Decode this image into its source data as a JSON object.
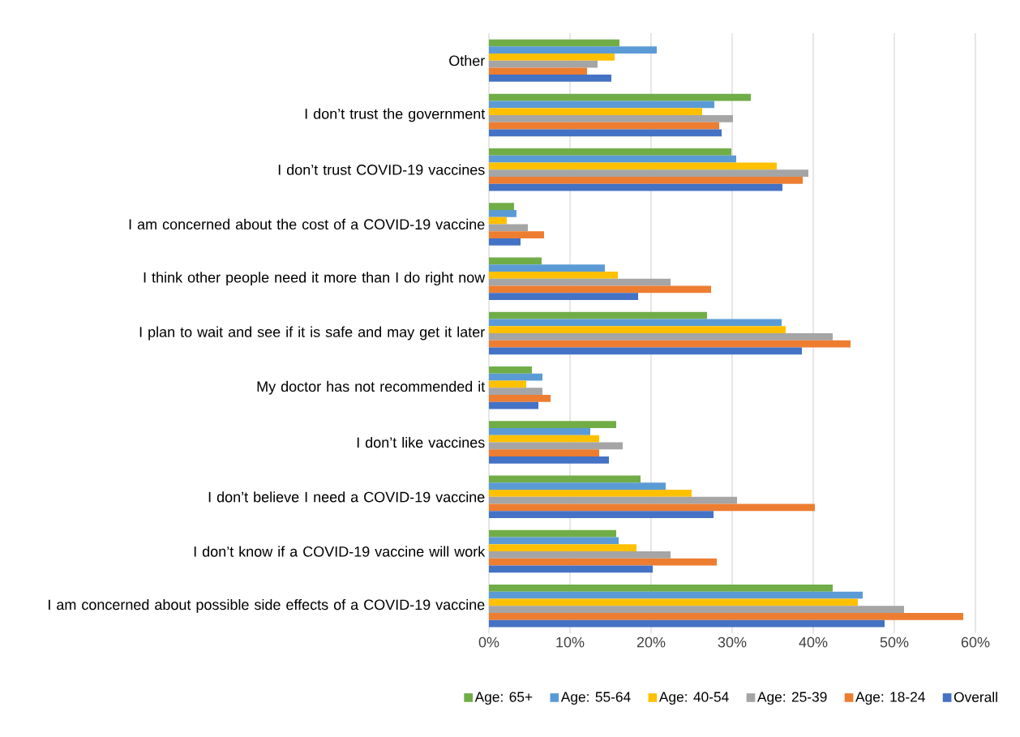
{
  "chart_data": {
    "type": "bar",
    "orientation": "horizontal",
    "categories": [
      "Other",
      "I don’t trust the government",
      "I don’t trust COVID-19 vaccines",
      "I am concerned about the cost of a COVID-19 vaccine",
      "I think other people need it more than I do right now",
      "I plan to wait and see if it is safe and may get it later",
      "My doctor has not recommended it",
      "I don’t like vaccines",
      "I don’t believe I need a COVID-19 vaccine",
      "I don’t know if a COVID-19 vaccine will work",
      "I am concerned about possible side effects of a COVID-19 vaccine"
    ],
    "series": [
      {
        "name": "Age: 65+",
        "color": "#70ad47",
        "values": [
          16.1,
          32.3,
          29.9,
          3.1,
          6.5,
          26.9,
          5.3,
          15.7,
          18.7,
          15.7,
          42.4
        ]
      },
      {
        "name": "Age: 55-64",
        "color": "#5b9bd5",
        "values": [
          20.7,
          27.8,
          30.5,
          3.4,
          14.3,
          36.1,
          6.6,
          12.5,
          21.8,
          16.0,
          46.1
        ]
      },
      {
        "name": "Age: 40-54",
        "color": "#ffc000",
        "values": [
          15.5,
          26.3,
          35.5,
          2.2,
          15.9,
          36.6,
          4.6,
          13.6,
          25.0,
          18.2,
          45.5
        ]
      },
      {
        "name": "Age: 25-39",
        "color": "#a5a5a5",
        "values": [
          13.4,
          30.1,
          39.4,
          4.8,
          22.4,
          42.4,
          6.6,
          16.5,
          30.6,
          22.4,
          51.2
        ]
      },
      {
        "name": "Age: 18-24",
        "color": "#ed7d31",
        "values": [
          12.1,
          28.4,
          38.7,
          6.8,
          27.4,
          44.6,
          7.6,
          13.6,
          40.2,
          28.1,
          58.5
        ]
      },
      {
        "name": "Overall",
        "color": "#4472c4",
        "values": [
          15.1,
          28.7,
          36.2,
          3.9,
          18.4,
          38.6,
          6.1,
          14.8,
          27.7,
          20.2,
          48.8
        ]
      }
    ],
    "xlim": [
      0,
      60
    ],
    "xticks": [
      {
        "value": 0,
        "label": "0%"
      },
      {
        "value": 10,
        "label": "10%"
      },
      {
        "value": 20,
        "label": "20%"
      },
      {
        "value": 30,
        "label": "30%"
      },
      {
        "value": 40,
        "label": "40%"
      },
      {
        "value": 50,
        "label": "50%"
      },
      {
        "value": 60,
        "label": "60%"
      }
    ],
    "grid": "x",
    "legend": "bottom"
  }
}
